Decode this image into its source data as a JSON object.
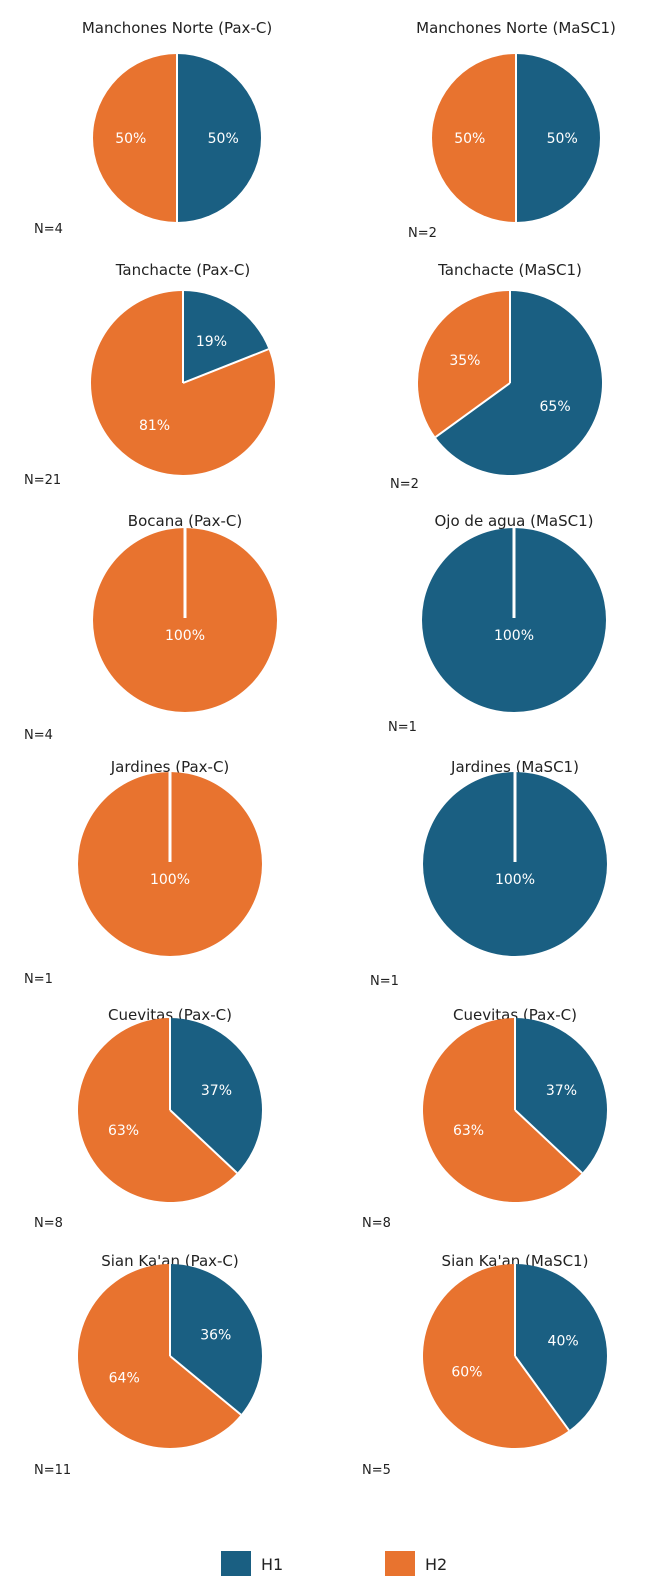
{
  "colors": {
    "H1": "#1a5f82",
    "H2": "#e8732f",
    "background": "#ffffff",
    "separator": "#ffffff"
  },
  "legend": {
    "position": "bottom-center",
    "items": [
      {
        "label": "H1"
      },
      {
        "label": "H2"
      }
    ]
  },
  "chart_data": [
    {
      "type": "pie",
      "title": "Manchones Norte (Pax-C)",
      "n_label": "N=4",
      "slices": [
        {
          "category": "H1",
          "value": 50,
          "label": "50%"
        },
        {
          "category": "H2",
          "value": 50,
          "label": "50%"
        }
      ]
    },
    {
      "type": "pie",
      "title": "Manchones Norte (MaSC1)",
      "n_label": "N=2",
      "slices": [
        {
          "category": "H1",
          "value": 50,
          "label": "50%"
        },
        {
          "category": "H2",
          "value": 50,
          "label": "50%"
        }
      ]
    },
    {
      "type": "pie",
      "title": "Tanchacte (Pax-C)",
      "n_label": "N=21",
      "slices": [
        {
          "category": "H1",
          "value": 19,
          "label": "19%"
        },
        {
          "category": "H2",
          "value": 81,
          "label": "81%"
        }
      ]
    },
    {
      "type": "pie",
      "title": "Tanchacte (MaSC1)",
      "n_label": "N=2",
      "slices": [
        {
          "category": "H1",
          "value": 65,
          "label": "65%"
        },
        {
          "category": "H2",
          "value": 35,
          "label": "35%"
        }
      ]
    },
    {
      "type": "pie",
      "title": "Bocana (Pax-C)",
      "n_label": "N=4",
      "slices": [
        {
          "category": "H2",
          "value": 100,
          "label": "100%"
        }
      ]
    },
    {
      "type": "pie",
      "title": "Ojo de agua (MaSC1)",
      "n_label": "N=1",
      "slices": [
        {
          "category": "H1",
          "value": 100,
          "label": "100%"
        }
      ]
    },
    {
      "type": "pie",
      "title": "Jardines (Pax-C)",
      "n_label": "N=1",
      "slices": [
        {
          "category": "H2",
          "value": 100,
          "label": "100%"
        }
      ]
    },
    {
      "type": "pie",
      "title": "Jardines (MaSC1)",
      "n_label": "N=1",
      "slices": [
        {
          "category": "H1",
          "value": 100,
          "label": "100%"
        }
      ]
    },
    {
      "type": "pie",
      "title": "Cuevitas (Pax-C)",
      "n_label": "N=8",
      "slices": [
        {
          "category": "H1",
          "value": 37,
          "label": "37%"
        },
        {
          "category": "H2",
          "value": 63,
          "label": "63%"
        }
      ]
    },
    {
      "type": "pie",
      "title": "Cuevitas (Pax-C)",
      "n_label": "N=8",
      "slices": [
        {
          "category": "H1",
          "value": 37,
          "label": "37%"
        },
        {
          "category": "H2",
          "value": 63,
          "label": "63%"
        }
      ]
    },
    {
      "type": "pie",
      "title": "Sian Ka'an (Pax-C)",
      "n_label": "N=11",
      "slices": [
        {
          "category": "H1",
          "value": 36,
          "label": "36%"
        },
        {
          "category": "H2",
          "value": 64,
          "label": "64%"
        }
      ]
    },
    {
      "type": "pie",
      "title": "Sian Ka'an (MaSC1)",
      "n_label": "N=5",
      "slices": [
        {
          "category": "H1",
          "value": 40,
          "label": "40%"
        },
        {
          "category": "H2",
          "value": 60,
          "label": "60%"
        }
      ]
    }
  ]
}
